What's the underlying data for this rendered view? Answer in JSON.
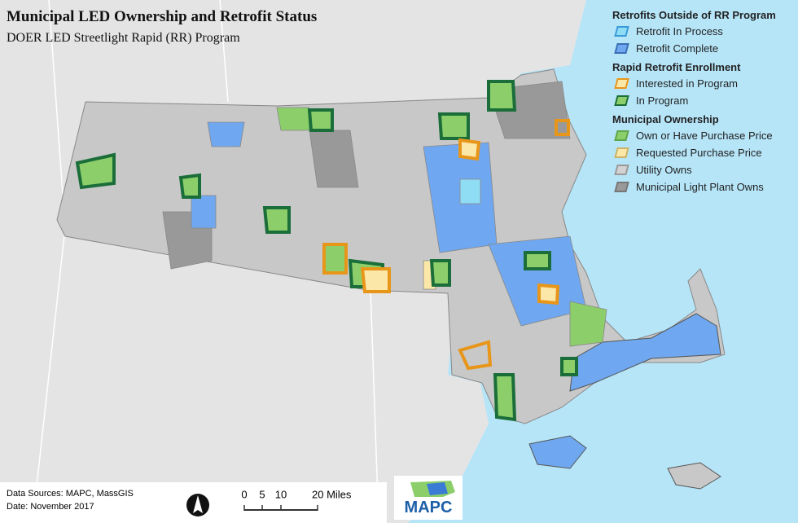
{
  "header": {
    "title": "Municipal LED Ownership and Retrofit Status",
    "subtitle": "DOER LED Streetlight Rapid (RR) Program"
  },
  "legend": {
    "groups": [
      {
        "title": "Retrofits Outside of RR Program",
        "items": [
          "Retrofit In Process",
          "Retrofit Complete"
        ]
      },
      {
        "title": "Rapid Retrofit Enrollment",
        "items": [
          "Interested in Program",
          "In Program"
        ]
      },
      {
        "title": "Municipal Ownership",
        "items": [
          "Own or Have Purchase Price",
          "Requested Purchase Price",
          "Utility Owns",
          "Municipal Light Plant Owns"
        ]
      }
    ]
  },
  "footer": {
    "sources": "Data Sources: MAPC, MassGIS",
    "date": "Date: November 2017"
  },
  "scale": {
    "labels": [
      "0",
      "5",
      "10",
      "20 Miles"
    ]
  },
  "logo": {
    "text": "MAPC"
  }
}
